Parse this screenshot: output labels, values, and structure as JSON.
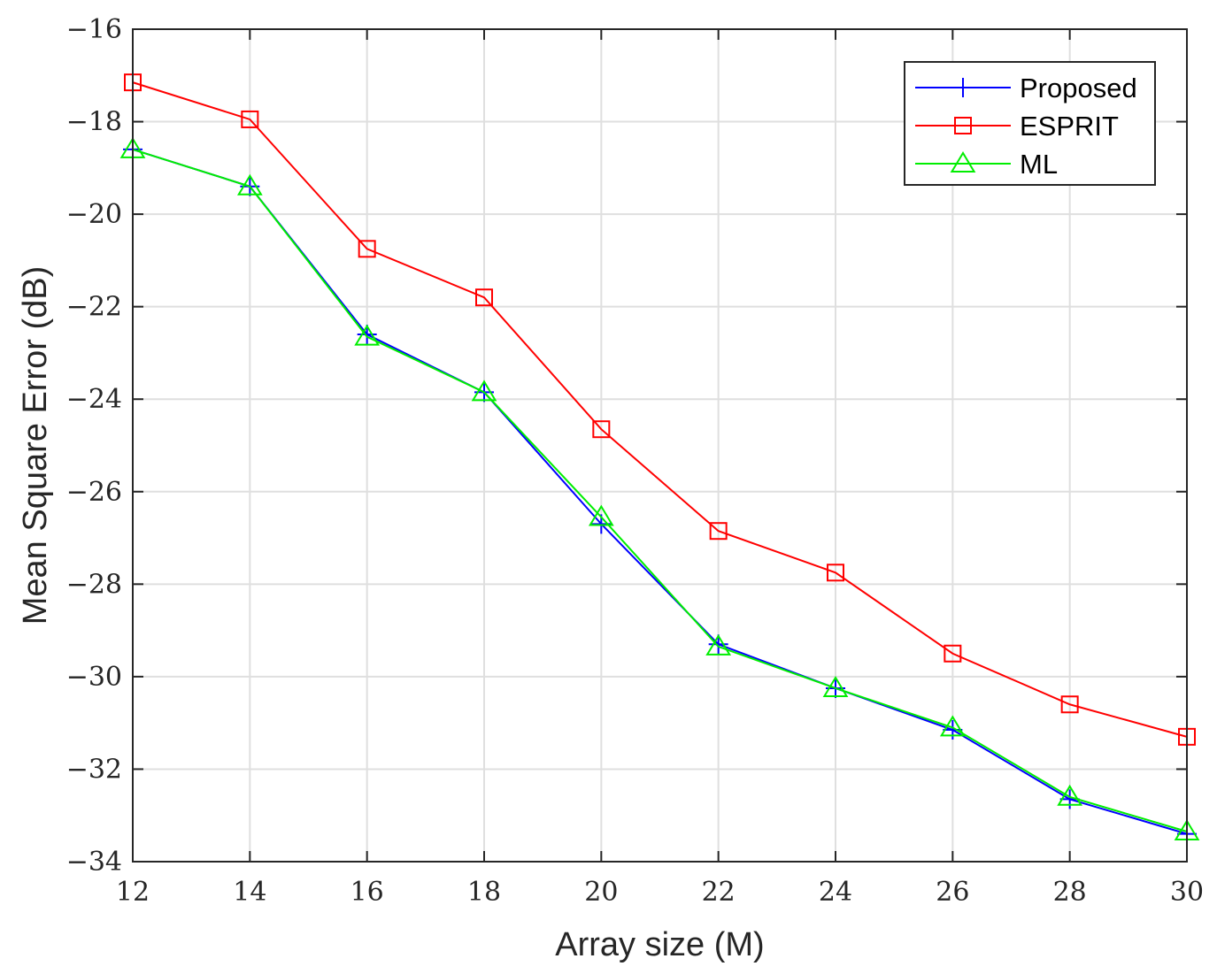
{
  "chart_data": {
    "type": "line",
    "title": "",
    "xlabel": "Array size (M)",
    "ylabel": "Mean Square Error (dB)",
    "x": [
      12,
      14,
      16,
      18,
      20,
      22,
      24,
      26,
      28,
      30
    ],
    "xlim": [
      12,
      30
    ],
    "ylim": [
      -34,
      -16
    ],
    "xticks": [
      12,
      14,
      16,
      18,
      20,
      22,
      24,
      26,
      28,
      30
    ],
    "yticks": [
      -16,
      -18,
      -20,
      -22,
      -24,
      -26,
      -28,
      -30,
      -32,
      -34
    ],
    "grid": true,
    "legend_position": "top-right",
    "series": [
      {
        "name": "Proposed",
        "color": "#0000ff",
        "marker": "plus",
        "values": [
          -18.6,
          -19.4,
          -22.6,
          -23.85,
          -26.7,
          -29.3,
          -30.25,
          -31.15,
          -32.65,
          -33.4
        ]
      },
      {
        "name": "ESPRIT",
        "color": "#ff0000",
        "marker": "square",
        "values": [
          -17.15,
          -17.95,
          -20.75,
          -21.8,
          -24.65,
          -26.85,
          -27.75,
          -29.5,
          -30.6,
          -31.3
        ]
      },
      {
        "name": "ML",
        "color": "#00ee00",
        "marker": "triangle",
        "values": [
          -18.6,
          -19.4,
          -22.65,
          -23.85,
          -26.55,
          -29.35,
          -30.25,
          -31.1,
          -32.6,
          -33.35
        ]
      }
    ]
  }
}
